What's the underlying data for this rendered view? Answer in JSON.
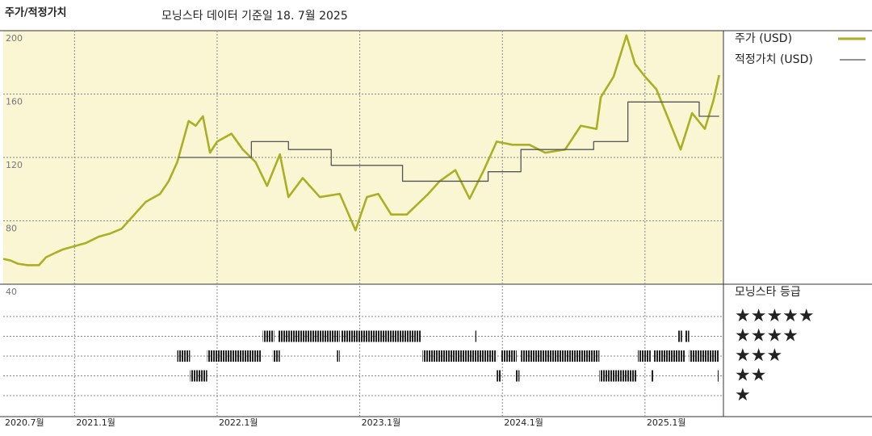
{
  "chart_data": {
    "type": "line",
    "title": "주가/적정가치",
    "subtitle": "모닝스타 데이터 기준일 18. 7월 2025",
    "xlim": [
      2020.5,
      2025.55
    ],
    "xticks": [
      {
        "value": 2020.5,
        "label": "2020.7월"
      },
      {
        "value": 2021,
        "label": "2021.1월"
      },
      {
        "value": 2022,
        "label": "2022.1월"
      },
      {
        "value": 2023,
        "label": "2023.1월"
      },
      {
        "value": 2024,
        "label": "2024.1월"
      },
      {
        "value": 2025,
        "label": "2025.1월"
      }
    ],
    "ylim": [
      40,
      200
    ],
    "yticks": [
      40,
      80,
      120,
      160,
      200
    ],
    "grid": true,
    "series": [
      {
        "name": "주가 (USD)",
        "color": "#a9b024",
        "step": false,
        "x": [
          2020.5,
          2020.55,
          2020.6,
          2020.67,
          2020.75,
          2020.8,
          2020.87,
          2020.92,
          2021.0,
          2021.08,
          2021.17,
          2021.25,
          2021.33,
          2021.42,
          2021.5,
          2021.6,
          2021.66,
          2021.72,
          2021.8,
          2021.85,
          2021.9,
          2021.95,
          2022.0,
          2022.1,
          2022.18,
          2022.27,
          2022.35,
          2022.44,
          2022.5,
          2022.6,
          2022.72,
          2022.86,
          2022.97,
          2023.05,
          2023.13,
          2023.22,
          2023.33,
          2023.48,
          2023.56,
          2023.67,
          2023.77,
          2023.87,
          2023.96,
          2024.07,
          2024.19,
          2024.3,
          2024.44,
          2024.55,
          2024.66,
          2024.69,
          2024.78,
          2024.87,
          2024.93,
          2025.0,
          2025.08,
          2025.17,
          2025.25,
          2025.33,
          2025.42,
          2025.48,
          2025.52
        ],
        "values": [
          56,
          55,
          53,
          52,
          52,
          57,
          60,
          62,
          64,
          66,
          70,
          72,
          75,
          84,
          92,
          97,
          105,
          117,
          143,
          140,
          146,
          123,
          130,
          135,
          125,
          117,
          102,
          122,
          95,
          107,
          95,
          97,
          74,
          95,
          97,
          84,
          84,
          97,
          105,
          112,
          94,
          112,
          130,
          128,
          128,
          123,
          125,
          140,
          138,
          158,
          171,
          197,
          179,
          171,
          163,
          143,
          125,
          148,
          138,
          156,
          172
        ]
      },
      {
        "name": "적정가치 (USD)",
        "color": "#555555",
        "step": true,
        "x": [
          2021.73,
          2022.24,
          2022.5,
          2022.8,
          2023.3,
          2023.9,
          2024.13,
          2024.64,
          2024.88,
          2025.38,
          2025.52
        ],
        "values": [
          120,
          130,
          125,
          115,
          105,
          111,
          125,
          130,
          155,
          146,
          146
        ]
      }
    ],
    "rating_title": "모닝스타 등급",
    "rating_labels": [
      "★★★★★",
      "★★★★",
      "★★★",
      "★★",
      "★"
    ],
    "rating_periods": [
      {
        "start": 2022.32,
        "end": 2022.4,
        "stars": 4
      },
      {
        "start": 2022.43,
        "end": 2022.86,
        "stars": 4
      },
      {
        "start": 2022.87,
        "end": 2023.43,
        "stars": 4
      },
      {
        "start": 2023.81,
        "end": 2023.82,
        "stars": 4
      },
      {
        "start": 2025.23,
        "end": 2025.26,
        "stars": 4
      },
      {
        "start": 2025.28,
        "end": 2025.31,
        "stars": 4
      },
      {
        "start": 2021.72,
        "end": 2021.81,
        "stars": 3
      },
      {
        "start": 2021.93,
        "end": 2022.31,
        "stars": 3
      },
      {
        "start": 2022.39,
        "end": 2022.44,
        "stars": 3
      },
      {
        "start": 2022.84,
        "end": 2022.86,
        "stars": 3
      },
      {
        "start": 2023.44,
        "end": 2023.96,
        "stars": 3
      },
      {
        "start": 2023.99,
        "end": 2024.1,
        "stars": 3
      },
      {
        "start": 2024.13,
        "end": 2024.68,
        "stars": 3
      },
      {
        "start": 2024.95,
        "end": 2025.04,
        "stars": 3
      },
      {
        "start": 2025.06,
        "end": 2025.28,
        "stars": 3
      },
      {
        "start": 2025.31,
        "end": 2025.52,
        "stars": 3
      },
      {
        "start": 2021.81,
        "end": 2021.93,
        "stars": 2
      },
      {
        "start": 2023.96,
        "end": 2023.99,
        "stars": 2
      },
      {
        "start": 2024.09,
        "end": 2024.12,
        "stars": 2
      },
      {
        "start": 2024.68,
        "end": 2024.94,
        "stars": 2
      },
      {
        "start": 2025.04,
        "end": 2025.06,
        "stars": 2
      },
      {
        "start": 2025.51,
        "end": 2025.52,
        "stars": 2
      }
    ]
  }
}
